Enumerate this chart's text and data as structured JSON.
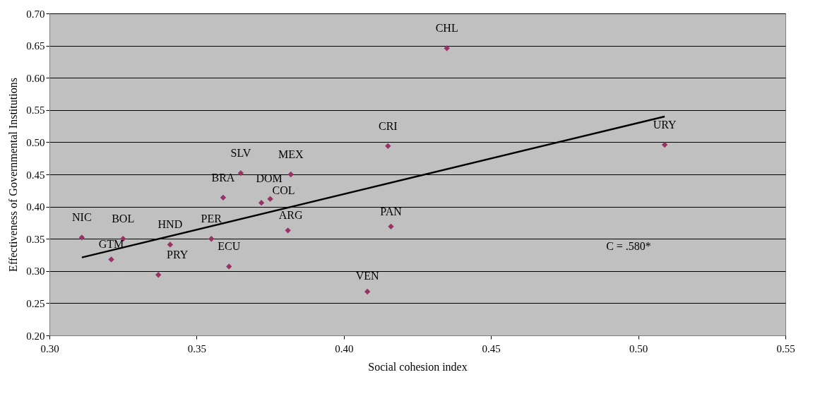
{
  "chart_data": {
    "type": "scatter",
    "xlabel": "Social cohesion index",
    "ylabel": "Effectiveness of Governmental Institutions",
    "xlim": [
      0.3,
      0.55
    ],
    "xticks": [
      {
        "value": 0.3,
        "label": "0.30"
      },
      {
        "value": 0.35,
        "label": "0.35"
      },
      {
        "value": 0.4,
        "label": "0.40"
      },
      {
        "value": 0.45,
        "label": "0.45"
      },
      {
        "value": 0.5,
        "label": "0.50"
      },
      {
        "value": 0.55,
        "label": "0.55"
      }
    ],
    "ylim": [
      0.2,
      0.7
    ],
    "yticks": [
      {
        "value": 0.2,
        "label": "0.20"
      },
      {
        "value": 0.25,
        "label": "0.25"
      },
      {
        "value": 0.3,
        "label": "0.30"
      },
      {
        "value": 0.35,
        "label": "0.35"
      },
      {
        "value": 0.4,
        "label": "0.40"
      },
      {
        "value": 0.45,
        "label": "0.45"
      },
      {
        "value": 0.5,
        "label": "0.50"
      },
      {
        "value": 0.55,
        "label": "0.55"
      },
      {
        "value": 0.6,
        "label": "0.60"
      },
      {
        "value": 0.65,
        "label": "0.65"
      },
      {
        "value": 0.7,
        "label": "0.70"
      }
    ],
    "grid": "y",
    "legend": false,
    "annotations": [
      "C = .580*"
    ],
    "series": [
      {
        "type": "scatter",
        "color": "#993366",
        "marker": "diamond",
        "x": [
          0.311,
          0.325,
          0.321,
          0.341,
          0.337,
          0.355,
          0.361,
          0.359,
          0.365,
          0.382,
          0.372,
          0.375,
          0.381,
          0.408,
          0.415,
          0.416,
          0.435,
          0.509
        ],
        "values": [
          0.352,
          0.35,
          0.318,
          0.341,
          0.294,
          0.35,
          0.307,
          0.414,
          0.452,
          0.45,
          0.406,
          0.412,
          0.363,
          0.268,
          0.494,
          0.369,
          0.646,
          0.496
        ],
        "value_labels": [
          "NIC",
          "BOL",
          "GTM",
          "HND",
          "PRY",
          "PER",
          "ECU",
          "BRA",
          "SLV",
          "MEX",
          "DOM",
          "COL",
          "ARG",
          "VEN",
          "CRI",
          "PAN",
          "CHL",
          "URY"
        ]
      },
      {
        "type": "line",
        "color": "#000000",
        "marker": "none",
        "line_style": "solid",
        "x": [
          0.311,
          0.509
        ],
        "values": [
          0.321,
          0.54
        ]
      }
    ]
  }
}
